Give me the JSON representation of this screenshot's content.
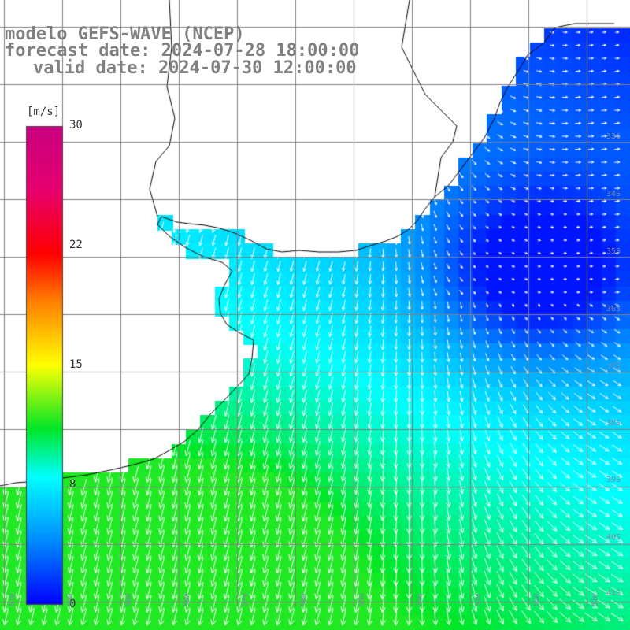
{
  "title": {
    "line1": "modelo GEFS-WAVE (NCEP)",
    "line2": "forecast date: 2024-07-28 18:00:00",
    "line3": "valid date: 2024-07-30 12:00:00"
  },
  "colorbar": {
    "unit": "[m/s]",
    "ticks": [
      {
        "value": 30,
        "label": "30"
      },
      {
        "value": 22,
        "label": "22"
      },
      {
        "value": 15,
        "label": "15"
      },
      {
        "value": 8,
        "label": "8"
      },
      {
        "value": 0,
        "label": "0"
      }
    ],
    "min": 0,
    "max": 30
  },
  "lat_labels": [
    "33S",
    "34S",
    "35S",
    "36S",
    "37S",
    "38S",
    "39S",
    "40S",
    "41S"
  ],
  "lon_labels": [
    "61W",
    "60W",
    "59W",
    "58W",
    "57W",
    "56W",
    "55W",
    "54W",
    "53W",
    "52W",
    "51W"
  ],
  "colors": {
    "land": "#ffffff",
    "coast": "#000000",
    "grid": "#808080",
    "arrows": "#ffffff",
    "title": "#808080"
  }
}
